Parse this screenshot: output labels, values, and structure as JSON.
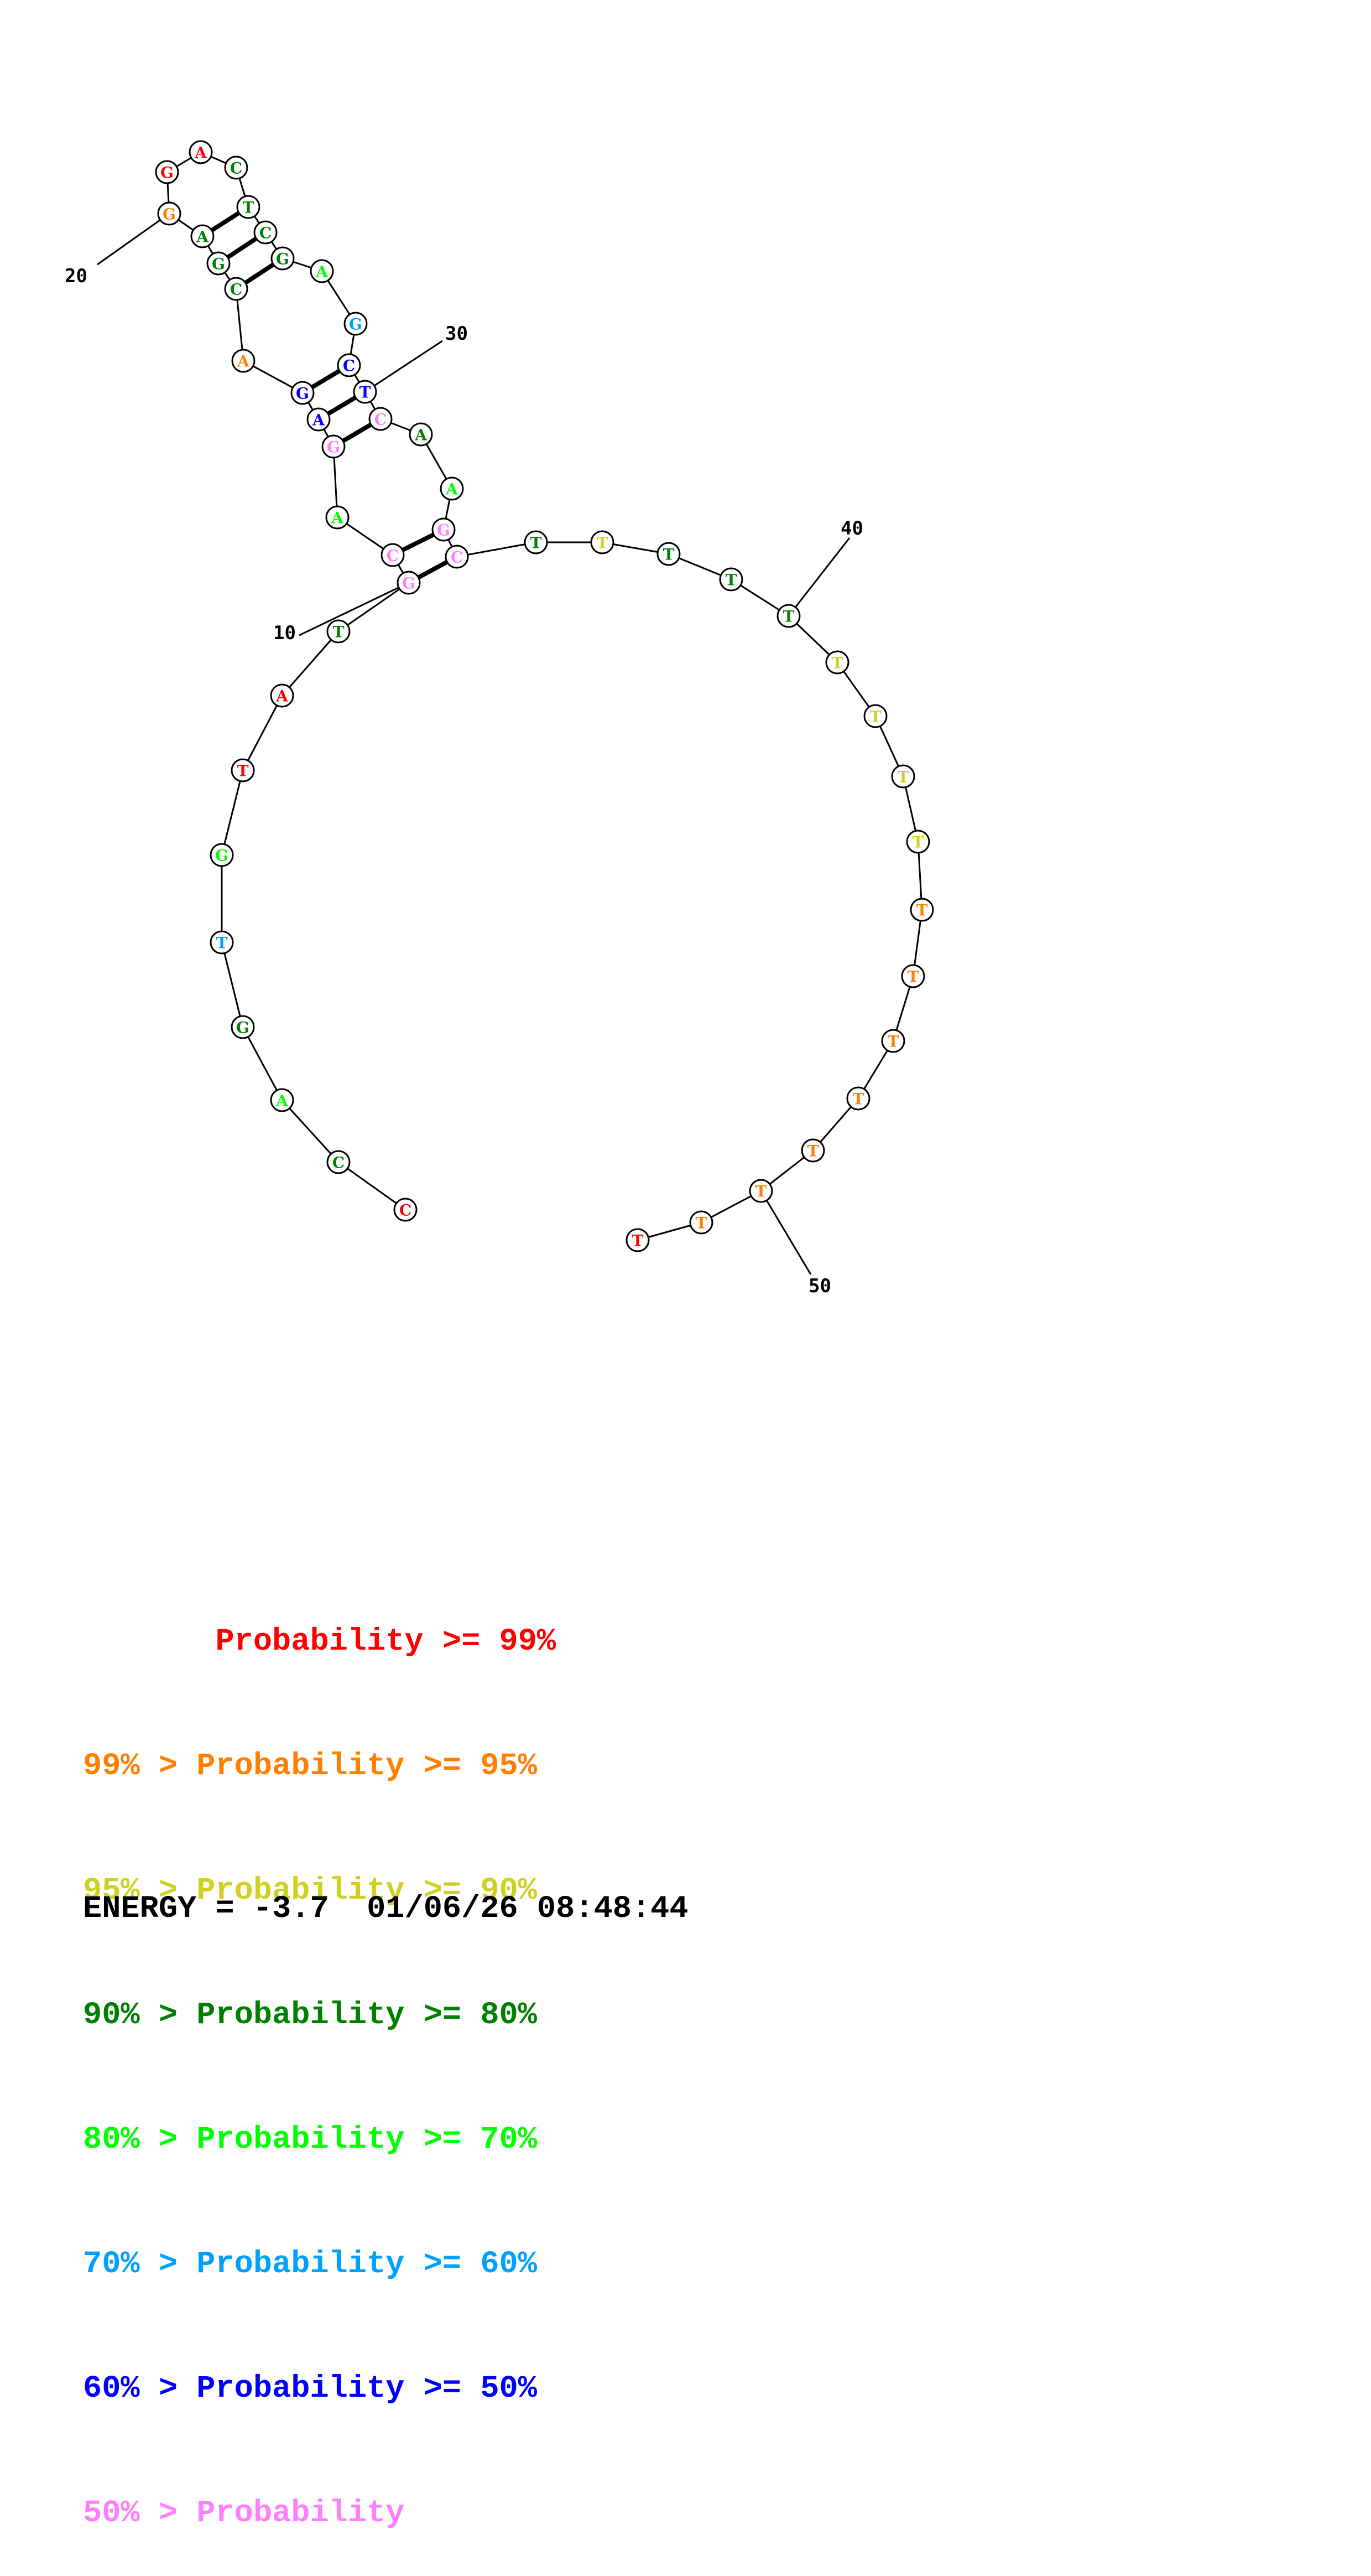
{
  "colors": {
    "p99": "#ff0000",
    "p95": "#ff8000",
    "p90": "#d0d020",
    "p80": "#008000",
    "p70": "#00ff00",
    "p60": "#00a0ff",
    "p50": "#0000ff",
    "plow": "#ff80ff"
  },
  "sequence": [
    {
      "n": 1,
      "base": "C",
      "cls": "p99"
    },
    {
      "n": 2,
      "base": "C",
      "cls": "p80"
    },
    {
      "n": 3,
      "base": "A",
      "cls": "p70"
    },
    {
      "n": 4,
      "base": "G",
      "cls": "p80"
    },
    {
      "n": 5,
      "base": "T",
      "cls": "p60"
    },
    {
      "n": 6,
      "base": "G",
      "cls": "p70"
    },
    {
      "n": 7,
      "base": "T",
      "cls": "p99"
    },
    {
      "n": 8,
      "base": "A",
      "cls": "p99"
    },
    {
      "n": 9,
      "base": "T",
      "cls": "p80"
    },
    {
      "n": 10,
      "base": "G",
      "cls": "plow"
    },
    {
      "n": 11,
      "base": "C",
      "cls": "plow"
    },
    {
      "n": 12,
      "base": "A",
      "cls": "p70"
    },
    {
      "n": 13,
      "base": "G",
      "cls": "plow"
    },
    {
      "n": 14,
      "base": "A",
      "cls": "p50"
    },
    {
      "n": 15,
      "base": "G",
      "cls": "p50"
    },
    {
      "n": 16,
      "base": "A",
      "cls": "p95"
    },
    {
      "n": 17,
      "base": "C",
      "cls": "p80"
    },
    {
      "n": 18,
      "base": "G",
      "cls": "p80"
    },
    {
      "n": 19,
      "base": "A",
      "cls": "p80"
    },
    {
      "n": 20,
      "base": "G",
      "cls": "p95"
    },
    {
      "n": 21,
      "base": "G",
      "cls": "p99"
    },
    {
      "n": 22,
      "base": "A",
      "cls": "p99"
    },
    {
      "n": 23,
      "base": "C",
      "cls": "p80"
    },
    {
      "n": 24,
      "base": "T",
      "cls": "p80"
    },
    {
      "n": 25,
      "base": "C",
      "cls": "p80"
    },
    {
      "n": 26,
      "base": "G",
      "cls": "p80"
    },
    {
      "n": 27,
      "base": "A",
      "cls": "p70"
    },
    {
      "n": 28,
      "base": "G",
      "cls": "p60"
    },
    {
      "n": 29,
      "base": "C",
      "cls": "p50"
    },
    {
      "n": 30,
      "base": "T",
      "cls": "p50"
    },
    {
      "n": 31,
      "base": "C",
      "cls": "plow"
    },
    {
      "n": 32,
      "base": "A",
      "cls": "p80"
    },
    {
      "n": 33,
      "base": "A",
      "cls": "p70"
    },
    {
      "n": 34,
      "base": "G",
      "cls": "plow"
    },
    {
      "n": 35,
      "base": "C",
      "cls": "plow"
    },
    {
      "n": 36,
      "base": "T",
      "cls": "p80"
    },
    {
      "n": 37,
      "base": "T",
      "cls": "p90"
    },
    {
      "n": 38,
      "base": "T",
      "cls": "p80"
    },
    {
      "n": 39,
      "base": "T",
      "cls": "p80"
    },
    {
      "n": 40,
      "base": "T",
      "cls": "p80"
    },
    {
      "n": 41,
      "base": "T",
      "cls": "p90"
    },
    {
      "n": 42,
      "base": "T",
      "cls": "p90"
    },
    {
      "n": 43,
      "base": "T",
      "cls": "p90"
    },
    {
      "n": 44,
      "base": "T",
      "cls": "p90"
    },
    {
      "n": 45,
      "base": "T",
      "cls": "p95"
    },
    {
      "n": 46,
      "base": "T",
      "cls": "p95"
    },
    {
      "n": 47,
      "base": "T",
      "cls": "p95"
    },
    {
      "n": 48,
      "base": "T",
      "cls": "p95"
    },
    {
      "n": 49,
      "base": "T",
      "cls": "p95"
    },
    {
      "n": 50,
      "base": "T",
      "cls": "p95"
    },
    {
      "n": 51,
      "base": "T",
      "cls": "p95"
    },
    {
      "n": 52,
      "base": "T",
      "cls": "p99"
    }
  ],
  "pairs": [
    [
      10,
      35
    ],
    [
      11,
      34
    ],
    [
      13,
      31
    ],
    [
      14,
      30
    ],
    [
      15,
      29
    ],
    [
      17,
      26
    ],
    [
      18,
      25
    ],
    [
      19,
      24
    ]
  ],
  "index_labels": [
    "10",
    "20",
    "30",
    "40",
    "50"
  ],
  "legend": [
    {
      "text": "       Probability >= 99%",
      "cls": "p99"
    },
    {
      "text": "99% > Probability >= 95%",
      "cls": "p95"
    },
    {
      "text": "95% > Probability >= 90%",
      "cls": "p90"
    },
    {
      "text": "90% > Probability >= 80%",
      "cls": "p80"
    },
    {
      "text": "80% > Probability >= 70%",
      "cls": "p70"
    },
    {
      "text": "70% > Probability >= 60%",
      "cls": "p60"
    },
    {
      "text": "60% > Probability >= 50%",
      "cls": "p50"
    },
    {
      "text": "50% > Probability",
      "cls": "plow"
    }
  ],
  "energy": "ENERGY = -3.7  01/06/26 08:48:44"
}
